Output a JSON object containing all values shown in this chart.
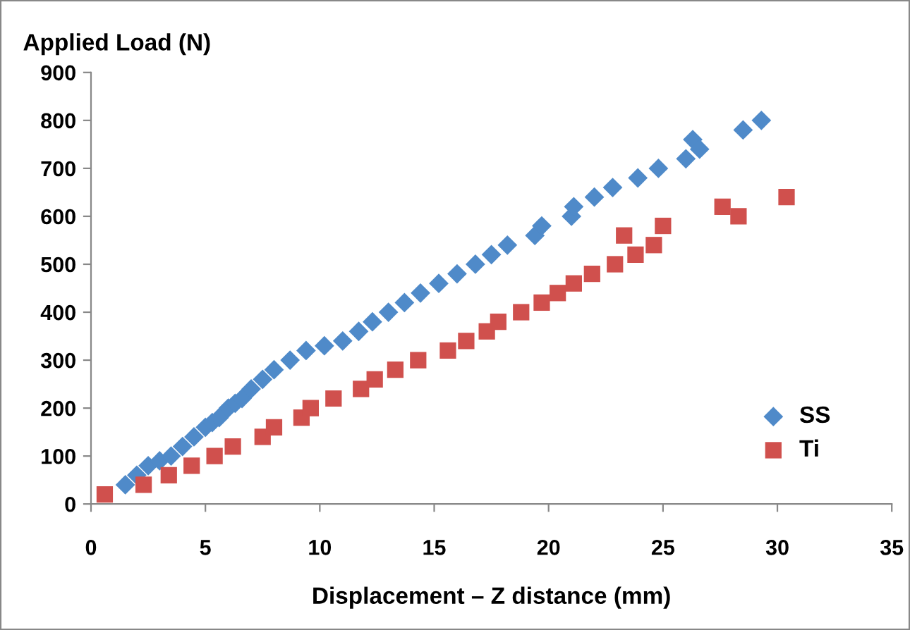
{
  "chart_data": {
    "type": "scatter",
    "ylabel": "Applied Load (N)",
    "xlabel": "Displacement – Z distance (mm)",
    "xlim": [
      0,
      35
    ],
    "xticks": [
      0,
      5,
      10,
      15,
      20,
      25,
      30,
      35
    ],
    "ylim": [
      0,
      900
    ],
    "yticks": [
      0,
      100,
      200,
      300,
      400,
      500,
      600,
      700,
      800,
      900
    ],
    "grid": false,
    "legend": "bottom right",
    "series": [
      {
        "name": "SS",
        "color": "#4f8ac9",
        "marker": "diamond",
        "x": [
          1.5,
          2,
          2.5,
          3,
          3.5,
          4,
          4.5,
          5,
          5.3,
          5.6,
          6,
          6.3,
          6.6,
          7,
          7.5,
          8,
          8.7,
          9.4,
          10.2,
          11,
          11.7,
          12.3,
          13,
          13.7,
          14.4,
          15.2,
          16,
          16.8,
          17.5,
          18.2,
          19.4,
          19.7,
          21,
          21.1,
          22,
          22.8,
          23.9,
          24.8,
          26,
          26.3,
          26.6,
          28.5,
          29.3
        ],
        "values": [
          40,
          60,
          80,
          90,
          100,
          120,
          140,
          160,
          170,
          180,
          200,
          210,
          220,
          240,
          260,
          280,
          300,
          320,
          330,
          340,
          360,
          380,
          400,
          420,
          440,
          460,
          480,
          500,
          520,
          540,
          560,
          580,
          600,
          620,
          640,
          660,
          680,
          700,
          720,
          760,
          740,
          780,
          800
        ]
      },
      {
        "name": "Ti",
        "color": "#d0504d",
        "marker": "square",
        "x": [
          0.6,
          2.3,
          3.4,
          4.4,
          5.4,
          6.2,
          7.5,
          8,
          9.2,
          9.6,
          10.6,
          11.8,
          12.4,
          13.3,
          14.3,
          15.6,
          16.4,
          17.3,
          17.8,
          18.8,
          19.7,
          20.4,
          21.1,
          21.9,
          22.9,
          23.3,
          23.8,
          24.6,
          25,
          27.6,
          28.3,
          30.4
        ],
        "values": [
          20,
          40,
          60,
          80,
          100,
          120,
          140,
          160,
          180,
          200,
          220,
          240,
          260,
          280,
          300,
          320,
          340,
          360,
          380,
          400,
          420,
          440,
          460,
          480,
          500,
          560,
          520,
          540,
          580,
          620,
          600,
          640
        ]
      }
    ]
  }
}
